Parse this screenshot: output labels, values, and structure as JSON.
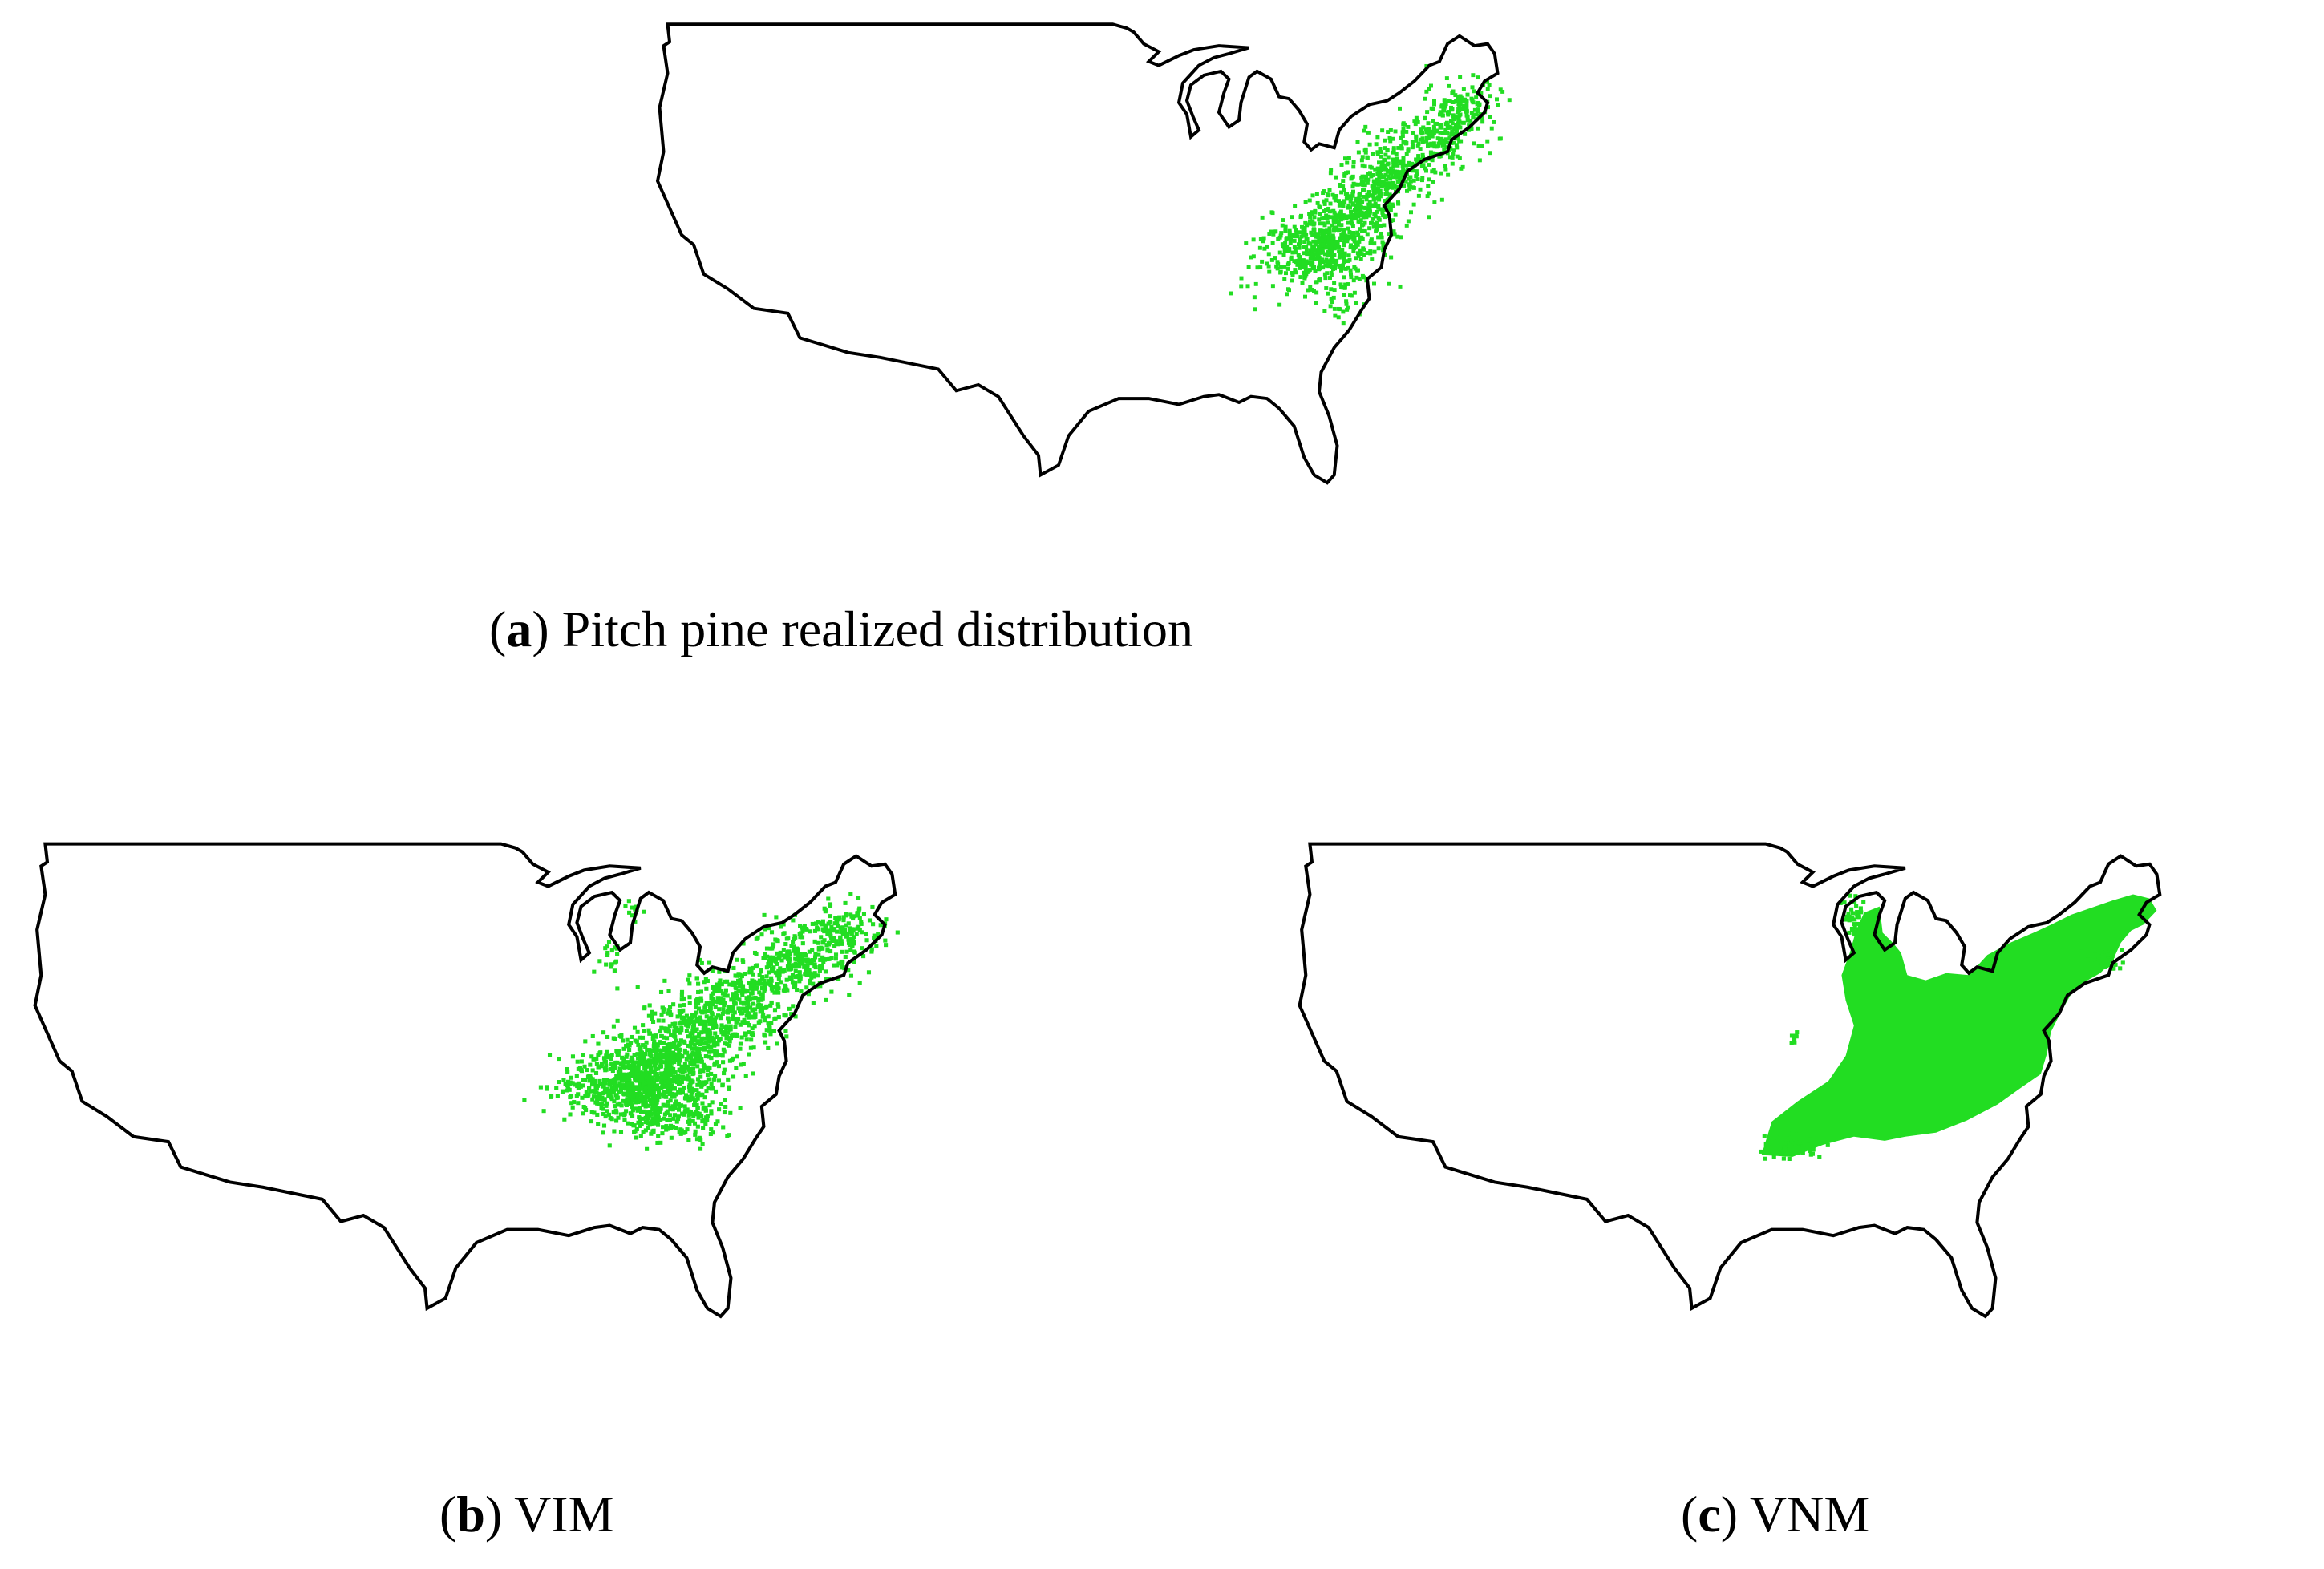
{
  "captions": {
    "a": {
      "open": "(",
      "letter": "a",
      "close": ")",
      "text": " Pitch pine realized distribution"
    },
    "b": {
      "open": "(",
      "letter": "b",
      "close": ")",
      "text": " VIM"
    },
    "c": {
      "open": "(",
      "letter": "c",
      "close": ")",
      "text": " VNM"
    }
  },
  "colors": {
    "outline": "#000000",
    "presence": "#22dd22",
    "background": "#ffffff"
  },
  "maps": [
    {
      "id": "a",
      "region": "contiguous-united-states",
      "layer": "realized-distribution",
      "style": "scattered-points"
    },
    {
      "id": "b",
      "region": "contiguous-united-states",
      "layer": "VIM-prediction",
      "style": "scattered-points"
    },
    {
      "id": "c",
      "region": "contiguous-united-states",
      "layer": "VNM-prediction",
      "style": "filled-region"
    }
  ]
}
